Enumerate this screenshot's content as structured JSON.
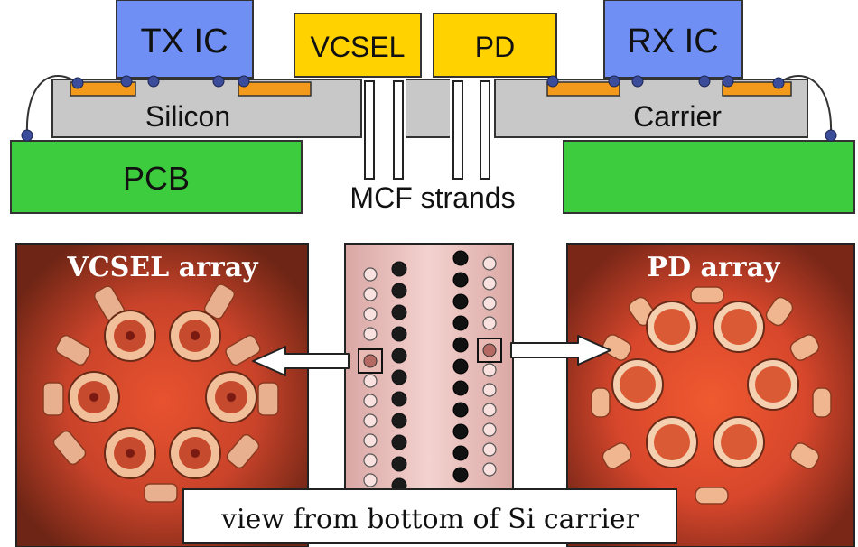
{
  "cross_section": {
    "tx_ic": "TX IC",
    "rx_ic": "RX IC",
    "vcsel": "VCSEL",
    "pd": "PD",
    "silicon_label": "Silicon",
    "carrier_label": "Carrier",
    "pcb_label": "PCB",
    "fiber_label": "MCF strands"
  },
  "micrographs": {
    "vcsel_title": "VCSEL array",
    "pd_title": "PD array",
    "caption": "view from bottom of Si carrier"
  },
  "colors": {
    "ic_blue": "#6f8ff5",
    "chip_yellow": "#ffd200",
    "pcb_green": "#3dcc3d",
    "silicon_gray": "#c8c8c8",
    "pad_orange": "#f39a1c",
    "bump_navy": "#3b4d9a",
    "micrograph_red": "#d2442a"
  }
}
